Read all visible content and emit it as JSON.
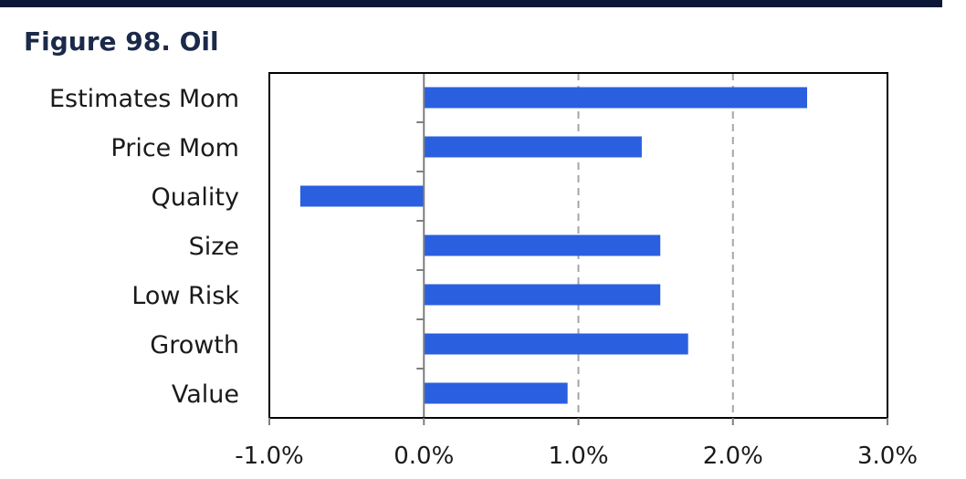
{
  "header": {
    "title": "Figure 98. Oil"
  },
  "colors": {
    "title": "#1b2a4a",
    "top_rule": "#0d1838",
    "bar": "#2a5fe0",
    "grid": "#a6a6a6",
    "axis": "#7f7f7f",
    "frame": "#000000"
  },
  "chart_data": {
    "type": "bar",
    "orientation": "horizontal",
    "title": "Figure 98. Oil",
    "categories": [
      "Estimates Mom",
      "Price Mom",
      "Quality",
      "Size",
      "Low Risk",
      "Growth",
      "Value"
    ],
    "values": [
      2.48,
      1.41,
      -0.8,
      1.53,
      1.53,
      1.71,
      0.93
    ],
    "value_unit": "%",
    "xlim": [
      -1.0,
      3.0
    ],
    "x_ticks": [
      -1.0,
      0.0,
      1.0,
      2.0,
      3.0
    ],
    "x_tick_labels": [
      "-1.0%",
      "0.0%",
      "1.0%",
      "2.0%",
      "3.0%"
    ],
    "grid": "vertical dashed",
    "legend": "none"
  }
}
